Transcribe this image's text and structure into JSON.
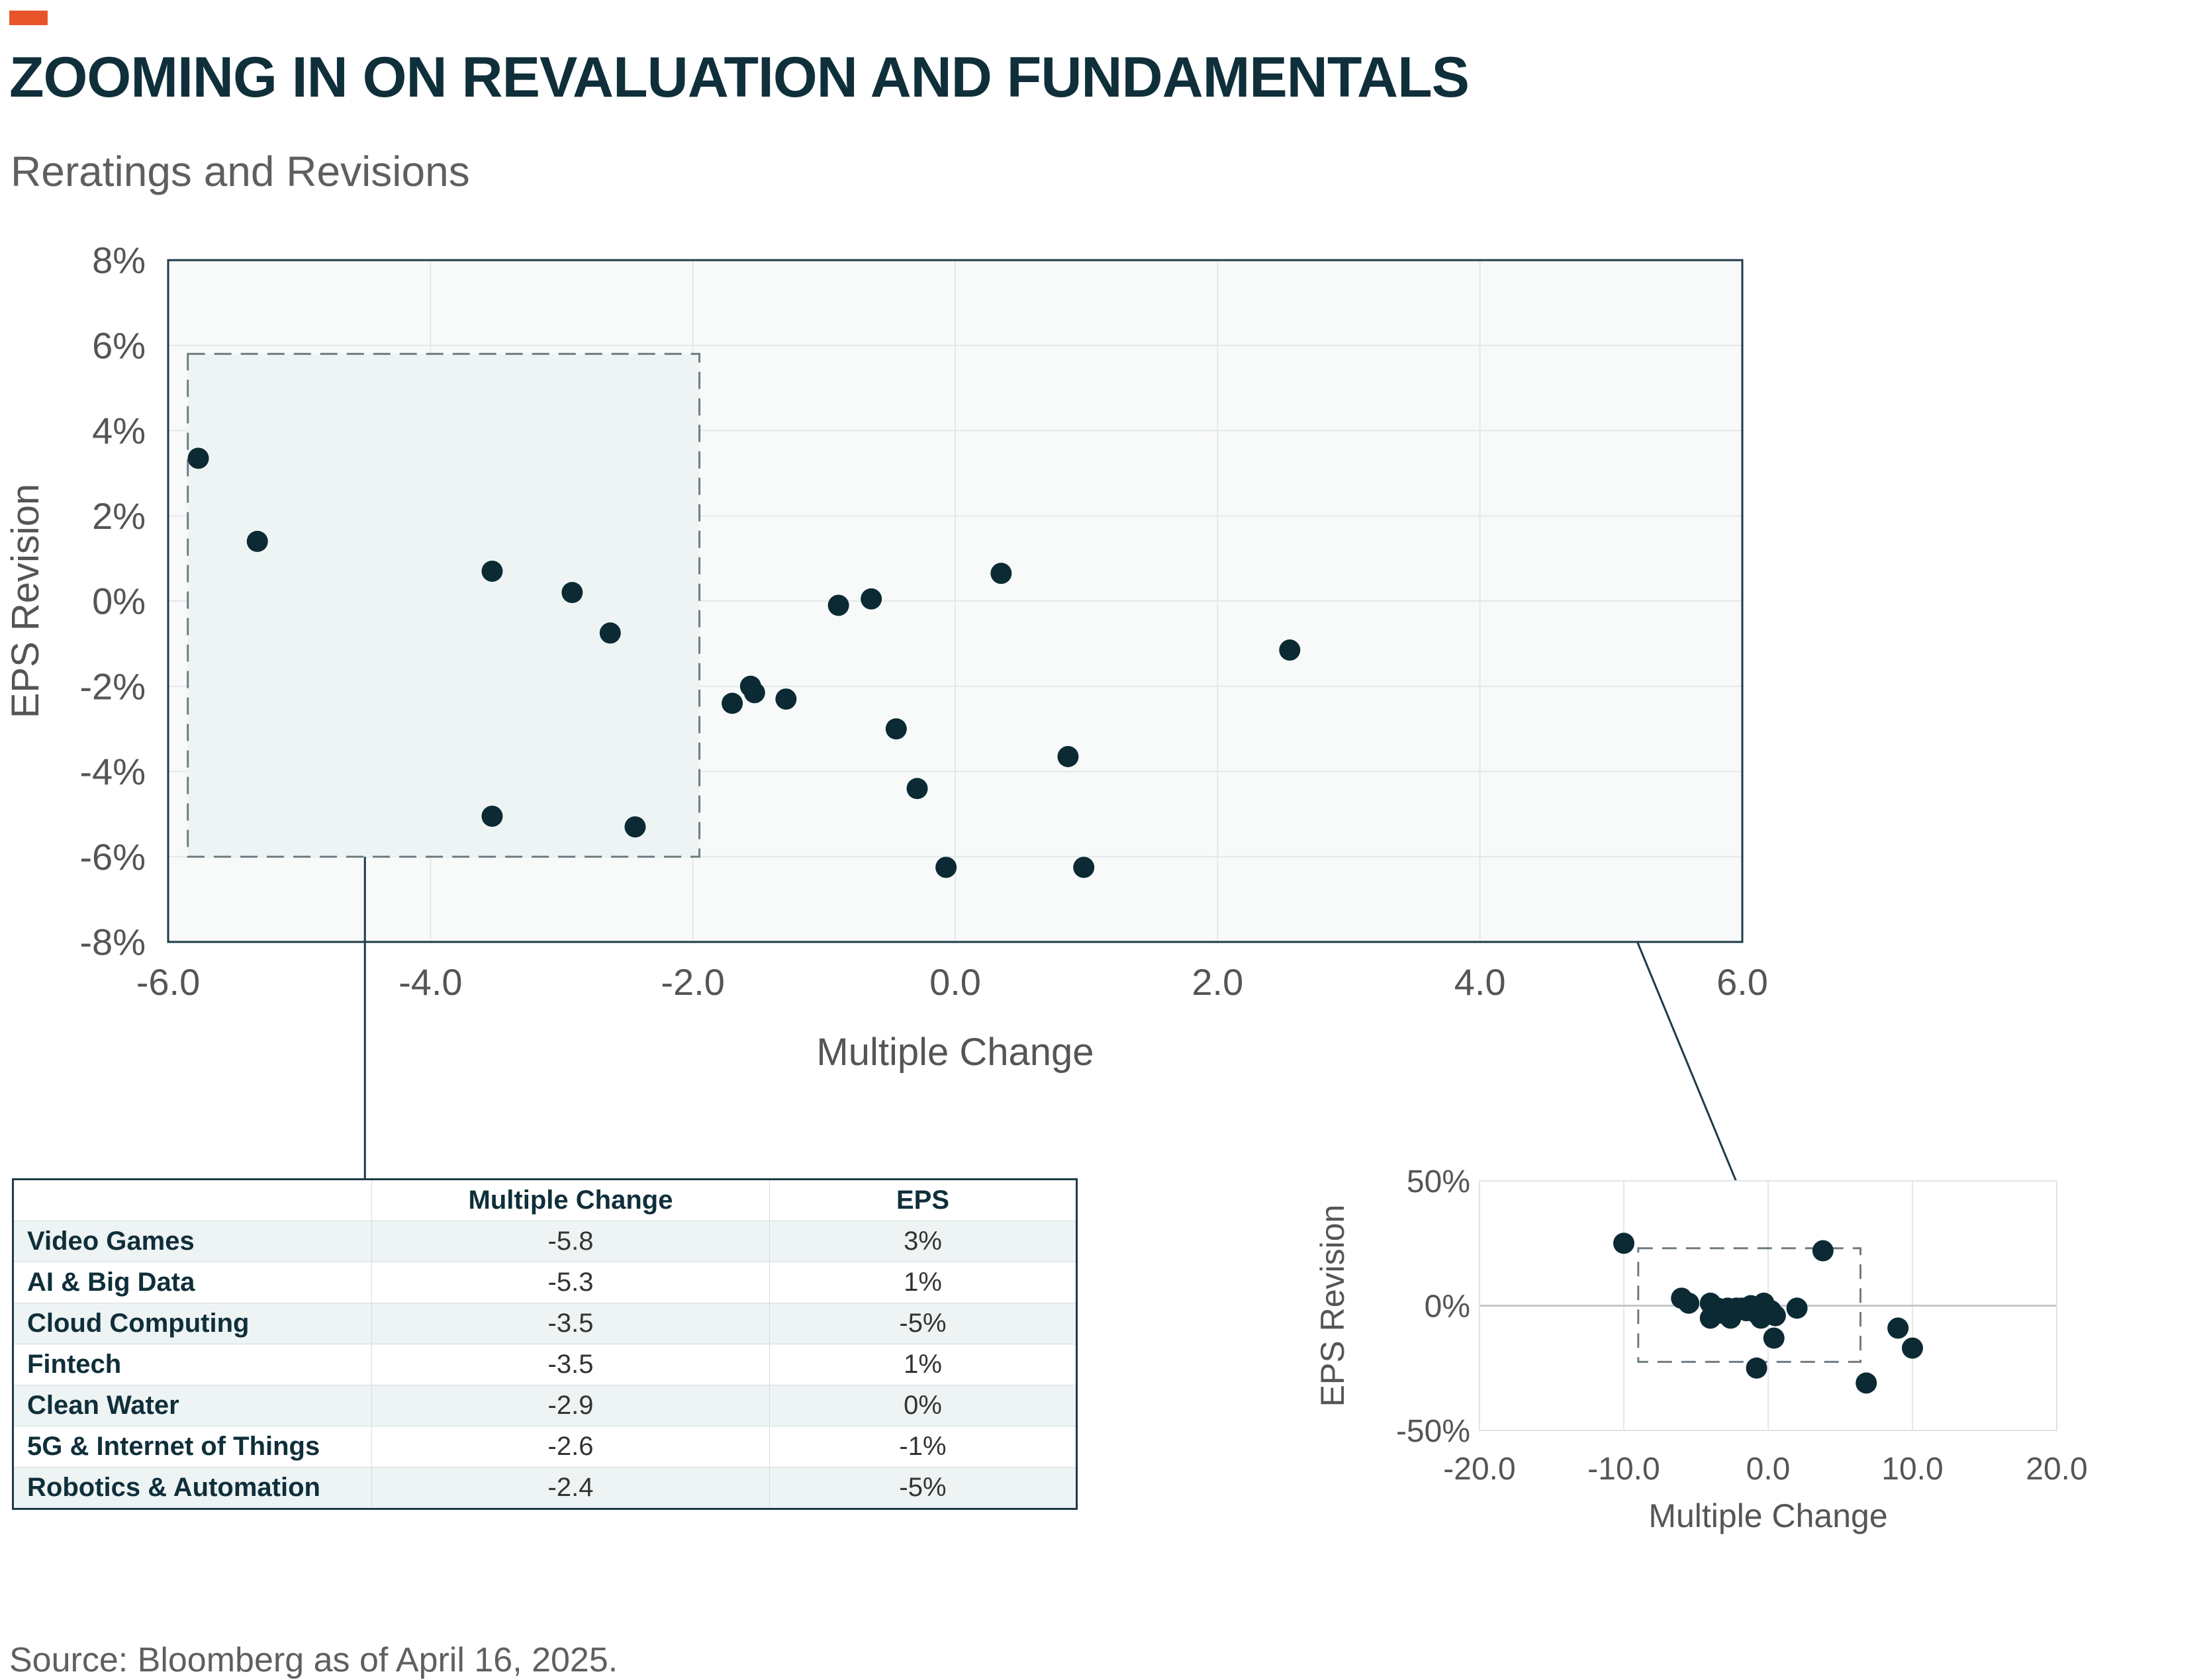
{
  "header": {
    "title": "ZOOMING IN ON REVALUATION AND FUNDAMENTALS",
    "subtitle": "Reratings and Revisions",
    "accent_color": "#e8552a"
  },
  "colors": {
    "title": "#0f2f3a",
    "point": "#0b2a33",
    "plot_bg": "#f8fafa",
    "zoom_box": "#eef4f4"
  },
  "chart_data": [
    {
      "type": "scatter",
      "title": "",
      "xlabel": "Multiple Change",
      "ylabel": "EPS Revision",
      "xlim": [
        -6,
        6
      ],
      "ylim": [
        -8,
        8
      ],
      "x_ticks": [
        -6,
        -4,
        -2,
        0,
        2,
        4,
        6
      ],
      "x_tick_labels": [
        "-6.0",
        "-4.0",
        "-2.0",
        "0.0",
        "2.0",
        "4.0",
        "6.0"
      ],
      "y_ticks": [
        8,
        6,
        4,
        2,
        0,
        -2,
        -4,
        -6,
        -8
      ],
      "y_tick_labels": [
        "8%",
        "6%",
        "4%",
        "2%",
        "0%",
        "-2%",
        "-4%",
        "-6%",
        "-8%"
      ],
      "grid": true,
      "highlight_region": {
        "x": [
          -5.85,
          -1.95
        ],
        "y": [
          -6,
          5.8
        ]
      },
      "points": [
        {
          "x": -5.77,
          "y": 3.35
        },
        {
          "x": -5.32,
          "y": 1.4
        },
        {
          "x": -3.53,
          "y": 0.7
        },
        {
          "x": -2.92,
          "y": 0.2
        },
        {
          "x": -2.63,
          "y": -0.75
        },
        {
          "x": -3.53,
          "y": -5.05
        },
        {
          "x": -2.44,
          "y": -5.3
        },
        {
          "x": -1.7,
          "y": -2.4
        },
        {
          "x": -1.56,
          "y": -2.0
        },
        {
          "x": -1.53,
          "y": -2.15
        },
        {
          "x": -1.29,
          "y": -2.3
        },
        {
          "x": -0.89,
          "y": -0.1
        },
        {
          "x": -0.64,
          "y": 0.05
        },
        {
          "x": -0.45,
          "y": -3.0
        },
        {
          "x": -0.29,
          "y": -4.4
        },
        {
          "x": -0.07,
          "y": -6.25
        },
        {
          "x": 0.35,
          "y": 0.65
        },
        {
          "x": 0.86,
          "y": -3.65
        },
        {
          "x": 0.98,
          "y": -6.25
        },
        {
          "x": 2.55,
          "y": -1.15
        }
      ]
    },
    {
      "type": "scatter",
      "title": "",
      "xlabel": "Multiple Change",
      "ylabel": "EPS Revision",
      "xlim": [
        -20,
        20
      ],
      "ylim": [
        -50,
        50
      ],
      "x_ticks": [
        -20,
        -10,
        0,
        10,
        20
      ],
      "x_tick_labels": [
        "-20.0",
        "-10.0",
        "0.0",
        "10.0",
        "20.0"
      ],
      "y_ticks": [
        50,
        0,
        -50
      ],
      "y_tick_labels": [
        "50%",
        "0%",
        "-50%"
      ],
      "grid": true,
      "highlight_region": {
        "x": [
          -9,
          6.4
        ],
        "y": [
          -22.5,
          23
        ]
      },
      "points": [
        {
          "x": -10,
          "y": 25
        },
        {
          "x": 3.8,
          "y": 22
        },
        {
          "x": -6,
          "y": 3
        },
        {
          "x": -5.5,
          "y": 1
        },
        {
          "x": -4,
          "y": 1
        },
        {
          "x": -3.5,
          "y": -1
        },
        {
          "x": -3.2,
          "y": -3
        },
        {
          "x": -2.8,
          "y": -1
        },
        {
          "x": -2.5,
          "y": -2
        },
        {
          "x": -2.2,
          "y": -1
        },
        {
          "x": -1.8,
          "y": -1
        },
        {
          "x": -1.5,
          "y": -2
        },
        {
          "x": -1.2,
          "y": 0
        },
        {
          "x": -0.8,
          "y": -3
        },
        {
          "x": -0.5,
          "y": -5
        },
        {
          "x": -0.3,
          "y": 1
        },
        {
          "x": 0.2,
          "y": -2
        },
        {
          "x": 0.5,
          "y": -4
        },
        {
          "x": -4,
          "y": -5
        },
        {
          "x": -2.6,
          "y": -5
        },
        {
          "x": 0.4,
          "y": -13
        },
        {
          "x": 2,
          "y": -1
        },
        {
          "x": -0.8,
          "y": -25
        },
        {
          "x": 6.8,
          "y": -31
        },
        {
          "x": 9,
          "y": -9
        },
        {
          "x": 10,
          "y": -17
        }
      ]
    }
  ],
  "table": {
    "headers": [
      "",
      "Multiple Change",
      "EPS"
    ],
    "rows": [
      [
        "Video Games",
        "-5.8",
        "3%"
      ],
      [
        "AI & Big Data",
        "-5.3",
        "1%"
      ],
      [
        "Cloud Computing",
        "-3.5",
        "-5%"
      ],
      [
        "Fintech",
        "-3.5",
        "1%"
      ],
      [
        "Clean Water",
        "-2.9",
        "0%"
      ],
      [
        "5G & Internet of Things",
        "-2.6",
        "-1%"
      ],
      [
        "Robotics & Automation",
        "-2.4",
        "-5%"
      ]
    ]
  },
  "source": "Source: Bloomberg as of April 16, 2025."
}
